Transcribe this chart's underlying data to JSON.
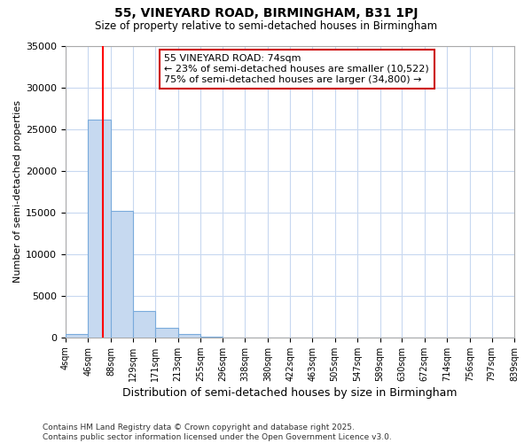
{
  "title1": "55, VINEYARD ROAD, BIRMINGHAM, B31 1PJ",
  "title2": "Size of property relative to semi-detached houses in Birmingham",
  "xlabel": "Distribution of semi-detached houses by size in Birmingham",
  "ylabel": "Number of semi-detached properties",
  "bin_edges": [
    4,
    46,
    88,
    129,
    171,
    213,
    255,
    296,
    338,
    380,
    422,
    463,
    505,
    547,
    589,
    630,
    672,
    714,
    756,
    797,
    839
  ],
  "bin_values": [
    400,
    26100,
    15200,
    3200,
    1200,
    400,
    100,
    0,
    0,
    0,
    0,
    0,
    0,
    0,
    0,
    0,
    0,
    0,
    0,
    0
  ],
  "bar_color": "#c6d9f0",
  "bar_edge_color": "#7aabdc",
  "red_line_x": 74,
  "annotation_title": "55 VINEYARD ROAD: 74sqm",
  "annotation_line1": "← 23% of semi-detached houses are smaller (10,522)",
  "annotation_line2": "75% of semi-detached houses are larger (34,800) →",
  "annotation_box_facecolor": "#ffffff",
  "annotation_box_edgecolor": "#cc0000",
  "ylim": [
    0,
    35000
  ],
  "yticks": [
    0,
    5000,
    10000,
    15000,
    20000,
    25000,
    30000,
    35000
  ],
  "background_color": "#ffffff",
  "plot_bg_color": "#ffffff",
  "footer_line1": "Contains HM Land Registry data © Crown copyright and database right 2025.",
  "footer_line2": "Contains public sector information licensed under the Open Government Licence v3.0.",
  "grid_color": "#c8d8f0"
}
